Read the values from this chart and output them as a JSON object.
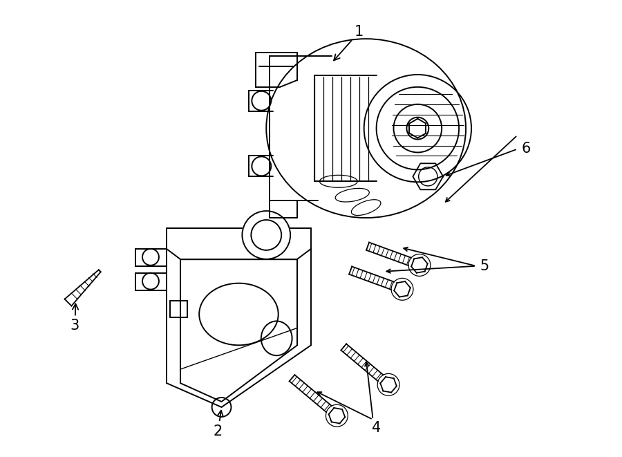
{
  "background_color": "#ffffff",
  "line_color": "#000000",
  "figsize": [
    9.0,
    6.61
  ],
  "dpi": 100,
  "label_fontsize": 13
}
